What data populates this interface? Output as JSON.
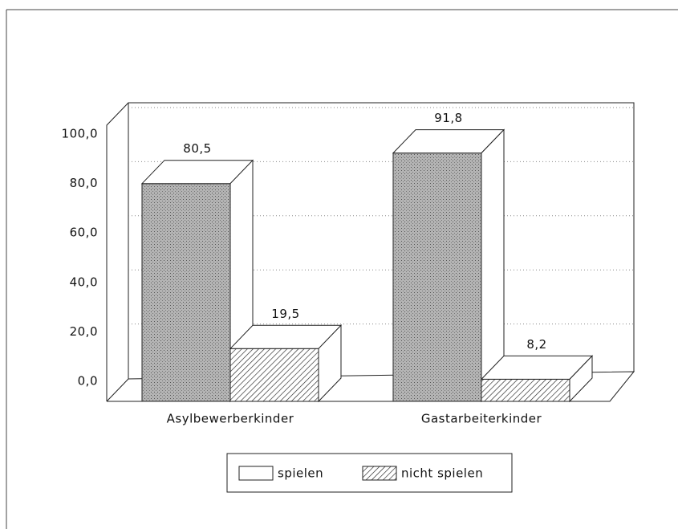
{
  "chart_data": {
    "type": "bar3d",
    "categories": [
      "Asylbewerberkinder",
      "Gastarbeiterkinder"
    ],
    "series": [
      {
        "name": "spielen",
        "color": "#b4b4b4",
        "values": [
          80.5,
          91.8
        ],
        "value_labels": [
          "80,5",
          "91,8"
        ]
      },
      {
        "name": "nicht spielen",
        "color": "#ffffff",
        "values": [
          19.5,
          8.2
        ],
        "value_labels": [
          "19,5",
          "8,2"
        ]
      }
    ],
    "ylim": [
      0,
      100
    ],
    "yticks": [
      {
        "value": 0,
        "label": "0,0"
      },
      {
        "value": 20,
        "label": "20,0"
      },
      {
        "value": 40,
        "label": "40,0"
      },
      {
        "value": 60,
        "label": "60,0"
      },
      {
        "value": 80,
        "label": "80,0"
      },
      {
        "value": 100,
        "label": "100,0"
      }
    ],
    "grid": true,
    "legend": "bottom"
  }
}
